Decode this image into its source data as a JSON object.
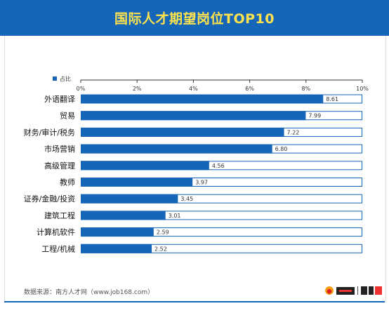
{
  "header": {
    "title": "国际人才期望岗位TOP10"
  },
  "footer": {
    "source": "数据来源：南方人才网（www.job168.com）"
  },
  "colors": {
    "header_bg": "#1565b8",
    "title": "#ffe34d",
    "bar": "#1565b8",
    "track_border": "#1565b8"
  },
  "logos": [
    "sun-logo",
    "talent-market-logo",
    "partner-logo"
  ],
  "chart_data": {
    "type": "bar",
    "orientation": "horizontal",
    "legend": {
      "label": "占比",
      "placement": "top-left"
    },
    "x_ticks": [
      "0%",
      "2%",
      "4%",
      "6%",
      "8%",
      "10%"
    ],
    "xlim": [
      0,
      10
    ],
    "categories": [
      "外语翻译",
      "贸易",
      "财务/审计/税务",
      "市场营销",
      "高级管理",
      "教师",
      "证券/金融/投资",
      "建筑工程",
      "计算机软件",
      "工程/机械"
    ],
    "values": [
      8.61,
      7.99,
      7.22,
      6.8,
      4.56,
      3.97,
      3.45,
      3.01,
      2.59,
      2.52
    ],
    "value_labels": [
      "8.61",
      "7.99",
      "7.22",
      "6.80",
      "4.56",
      "3.97",
      "3.45",
      "3.01",
      "2.59",
      "2.52"
    ]
  }
}
